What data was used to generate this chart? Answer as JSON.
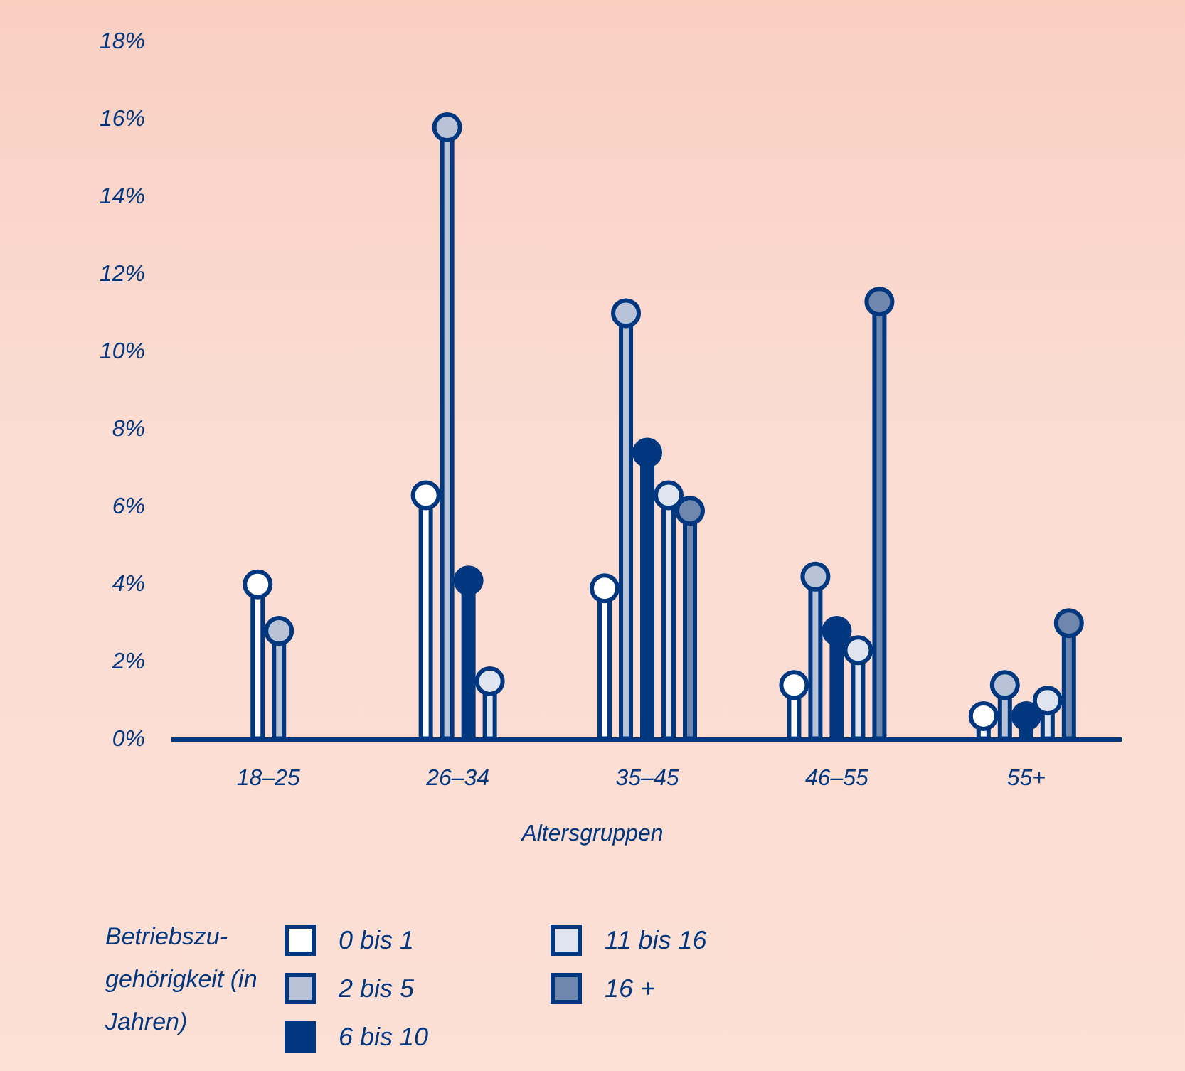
{
  "chart_data": {
    "type": "lollipop",
    "xlabel": "Altersgruppen",
    "legend_title": "Betriebszu-gehörigkeit (in Jahren)",
    "legend": "bottom left",
    "marker": "circle",
    "grid": false,
    "categories": [
      "18–25",
      "26–34",
      "35–45",
      "46–55",
      "55+"
    ],
    "ylim": [
      0,
      18
    ],
    "yticks": [
      {
        "value": 0,
        "label": "0%"
      },
      {
        "value": 2,
        "label": "2%"
      },
      {
        "value": 4,
        "label": "4%"
      },
      {
        "value": 6,
        "label": "6%"
      },
      {
        "value": 8,
        "label": "8%"
      },
      {
        "value": 10,
        "label": "10%"
      },
      {
        "value": 12,
        "label": "12%"
      },
      {
        "value": 14,
        "label": "14%"
      },
      {
        "value": 16,
        "label": "16%"
      },
      {
        "value": 18,
        "label": "18%"
      }
    ],
    "series": [
      {
        "name": "0 bis 1",
        "color": "#ffffff",
        "values": [
          4.0,
          6.3,
          3.9,
          1.4,
          0.6
        ]
      },
      {
        "name": "2 bis 5",
        "color": "#b8c3d8",
        "values": [
          2.8,
          15.8,
          11.0,
          4.2,
          1.4
        ]
      },
      {
        "name": "6 bis 10",
        "color": "#00377f",
        "values": [
          null,
          4.1,
          7.4,
          2.8,
          0.6
        ]
      },
      {
        "name": "11 bis 16",
        "color": "#dfe4ee",
        "values": [
          null,
          1.5,
          6.3,
          2.3,
          1.0
        ]
      },
      {
        "name": "16 +",
        "color": "#6f86ad",
        "values": [
          null,
          null,
          5.9,
          11.3,
          3.0
        ]
      }
    ]
  }
}
